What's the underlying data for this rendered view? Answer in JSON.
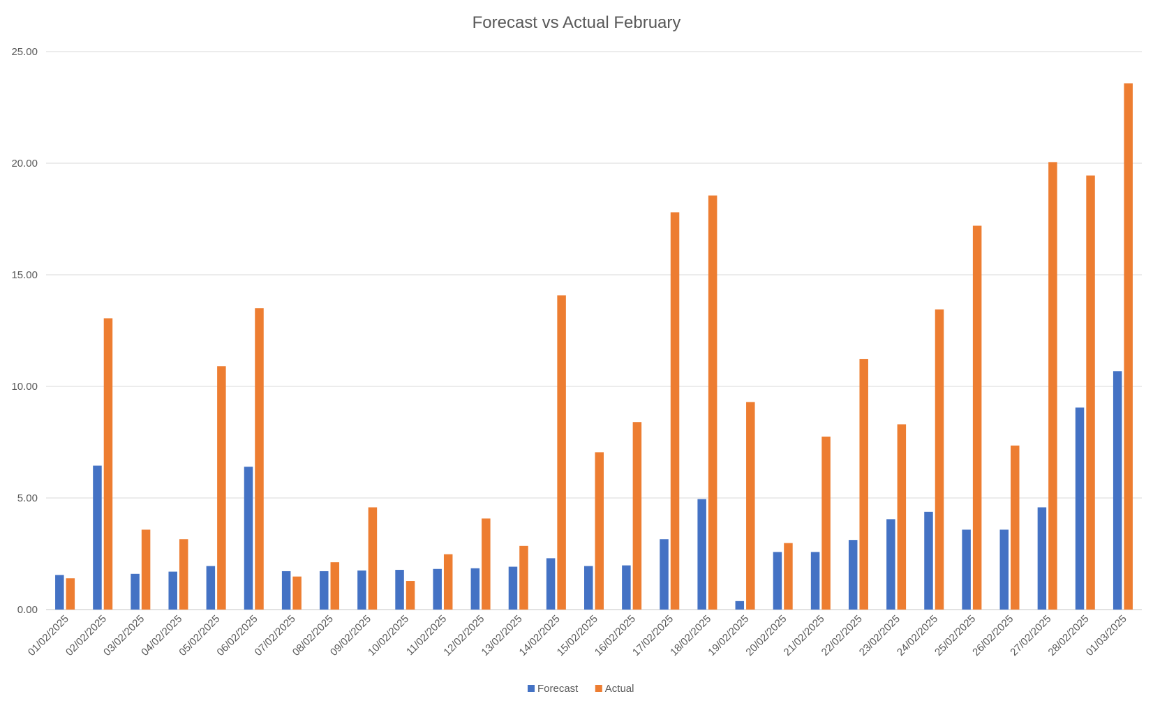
{
  "chart_data": {
    "type": "bar",
    "title": "Forecast vs Actual February",
    "xlabel": "",
    "ylabel": "",
    "ylim": [
      0,
      25
    ],
    "yticks": [
      "0.00",
      "5.00",
      "10.00",
      "15.00",
      "20.00",
      "25.00"
    ],
    "grid": true,
    "legend_position": "bottom",
    "categories": [
      "01/02/2025",
      "02/02/2025",
      "03/02/2025",
      "04/02/2025",
      "05/02/2025",
      "06/02/2025",
      "07/02/2025",
      "08/02/2025",
      "09/02/2025",
      "10/02/2025",
      "11/02/2025",
      "12/02/2025",
      "13/02/2025",
      "14/02/2025",
      "15/02/2025",
      "16/02/2025",
      "17/02/2025",
      "18/02/2025",
      "19/02/2025",
      "20/02/2025",
      "21/02/2025",
      "22/02/2025",
      "23/02/2025",
      "24/02/2025",
      "25/02/2025",
      "26/02/2025",
      "27/02/2025",
      "28/02/2025",
      "01/03/2025"
    ],
    "series": [
      {
        "name": "Forecast",
        "color": "#4472c4",
        "values": [
          1.55,
          6.45,
          1.6,
          1.7,
          1.95,
          6.4,
          1.72,
          1.72,
          1.75,
          1.78,
          1.82,
          1.85,
          1.92,
          2.3,
          1.95,
          1.98,
          3.15,
          4.95,
          0.38,
          2.58,
          2.58,
          3.12,
          4.05,
          4.38,
          3.58,
          3.58,
          4.58,
          9.05,
          10.68
        ]
      },
      {
        "name": "Actual",
        "color": "#ed7d31",
        "values": [
          1.4,
          13.05,
          3.58,
          3.15,
          10.9,
          13.5,
          1.48,
          2.12,
          4.58,
          1.28,
          2.48,
          4.08,
          2.85,
          14.08,
          7.05,
          8.4,
          17.8,
          18.55,
          9.3,
          2.98,
          7.75,
          11.22,
          8.3,
          13.45,
          17.2,
          7.35,
          20.05,
          19.45,
          23.58
        ]
      }
    ]
  }
}
